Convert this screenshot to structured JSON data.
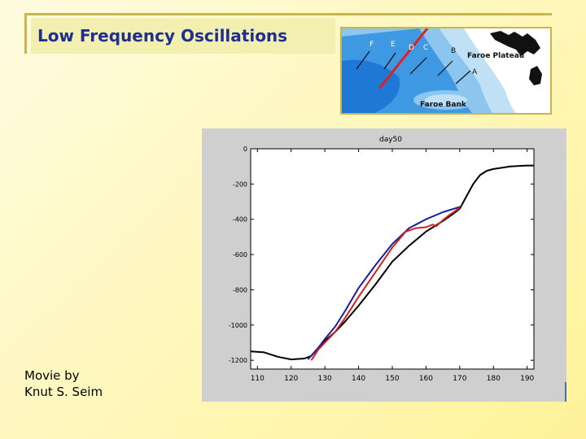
{
  "slide": {
    "title": "Low Frequency Oscillations",
    "credit_line1": "Movie by",
    "credit_line2": "Knut S. Seim"
  },
  "map": {
    "labels": {
      "F": "F",
      "E": "E",
      "D": "D",
      "C": "C",
      "B": "B",
      "A": "A",
      "faroe_plateau": "Faroe Plateau",
      "faroe_bank": "Faroe Bank"
    }
  },
  "chart_data": {
    "type": "line",
    "title": "day50",
    "xlabel": "",
    "ylabel": "",
    "xlim": [
      108,
      192
    ],
    "ylim": [
      -1250,
      0
    ],
    "x_ticks": [
      110,
      120,
      130,
      140,
      150,
      160,
      170,
      180,
      190
    ],
    "y_ticks": [
      0,
      -200,
      -400,
      -600,
      -800,
      -1000,
      -1200
    ],
    "x_tick_labels": [
      "110",
      "120",
      "130",
      "140",
      "150",
      "160",
      "170",
      "180",
      "190"
    ],
    "y_tick_labels": [
      "0",
      "-200",
      "-400",
      "-600",
      "-800",
      "-1000",
      "-1200"
    ],
    "grid": false,
    "series": [
      {
        "color": "#000000",
        "x": [
          108,
          112,
          116,
          120,
          124,
          126,
          128,
          130,
          133,
          136,
          140,
          145,
          150,
          155,
          160,
          165,
          168,
          170,
          172,
          174,
          176,
          178,
          180,
          185,
          190,
          192
        ],
        "y": [
          -1150,
          -1155,
          -1180,
          -1195,
          -1190,
          -1175,
          -1130,
          -1090,
          -1040,
          -980,
          -890,
          -770,
          -640,
          -550,
          -470,
          -410,
          -370,
          -340,
          -270,
          -200,
          -150,
          -125,
          -115,
          -100,
          -95,
          -95
        ]
      },
      {
        "color": "#1c1c9c",
        "x": [
          125,
          128,
          130,
          133,
          136,
          140,
          145,
          150,
          155,
          160,
          165,
          170
        ],
        "y": [
          -1195,
          -1130,
          -1080,
          -1010,
          -920,
          -790,
          -660,
          -540,
          -450,
          -400,
          -360,
          -330
        ]
      },
      {
        "color": "#d42020",
        "x": [
          126,
          128,
          130,
          133,
          136,
          140,
          145,
          150,
          154,
          157,
          160,
          162,
          163,
          165,
          167,
          170
        ],
        "y": [
          -1200,
          -1140,
          -1100,
          -1040,
          -960,
          -840,
          -700,
          -560,
          -470,
          -450,
          -445,
          -430,
          -440,
          -405,
          -375,
          -335
        ]
      }
    ]
  }
}
